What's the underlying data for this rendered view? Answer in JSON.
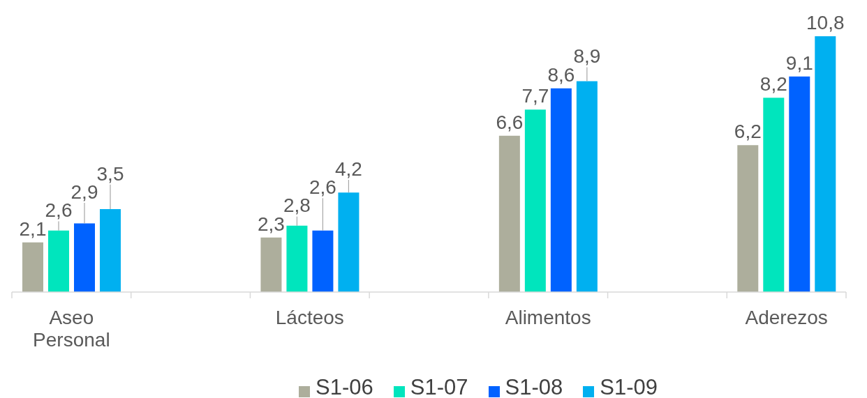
{
  "chart_data": {
    "type": "bar",
    "categories": [
      "Aseo Personal",
      null,
      "Lácteos",
      null,
      "Alimentos",
      null,
      "Aderezos"
    ],
    "series": [
      {
        "name": "S1-06",
        "color": "#adae9c",
        "values": [
          2.1,
          null,
          2.3,
          null,
          6.6,
          null,
          6.2
        ],
        "value_labels": [
          "2,1",
          null,
          "2,3",
          null,
          "6,6",
          null,
          "6,2"
        ]
      },
      {
        "name": "S1-07",
        "color": "#00e5bd",
        "values": [
          2.6,
          null,
          2.8,
          null,
          7.7,
          null,
          8.2
        ],
        "value_labels": [
          "2,6",
          null,
          "2,8",
          null,
          "7,7",
          null,
          "8,2"
        ]
      },
      {
        "name": "S1-08",
        "color": "#0062ff",
        "values": [
          2.9,
          null,
          2.6,
          null,
          8.6,
          null,
          9.1
        ],
        "value_labels": [
          "2,9",
          null,
          "2,6",
          null,
          "8,6",
          null,
          "9,1"
        ]
      },
      {
        "name": "S1-09",
        "color": "#00b0f0",
        "values": [
          3.5,
          null,
          4.2,
          null,
          8.9,
          null,
          10.8
        ],
        "value_labels": [
          "3,5",
          null,
          "4,2",
          null,
          "8,9",
          null,
          "10,8"
        ]
      }
    ],
    "legend": "bottom",
    "tick_labels": "x"
  }
}
